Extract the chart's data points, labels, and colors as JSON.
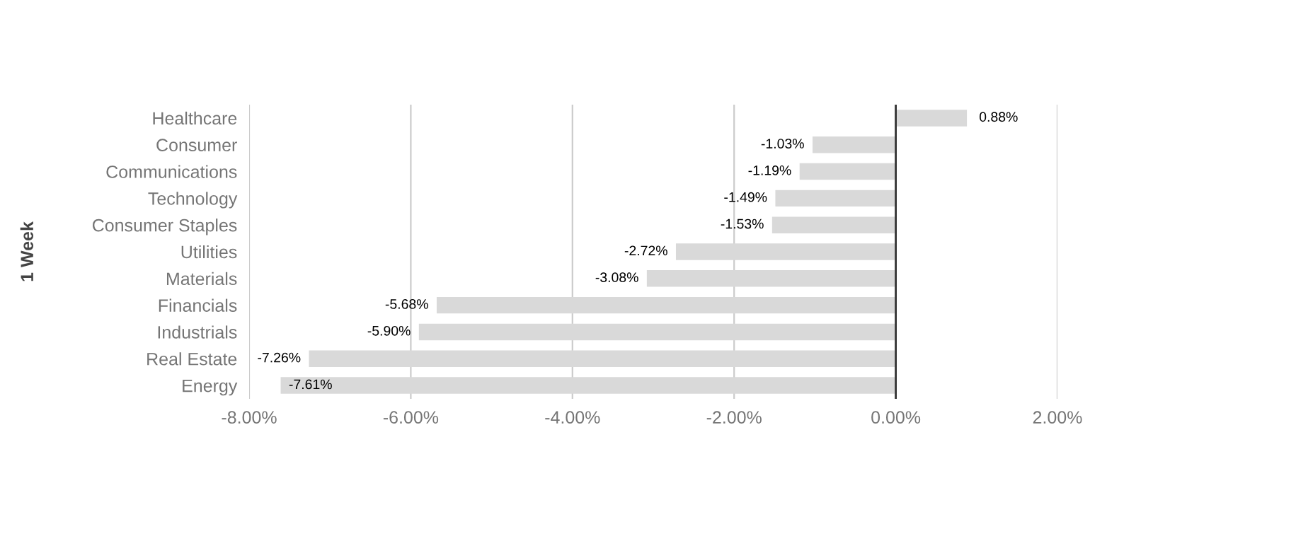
{
  "chart_data": {
    "type": "bar",
    "orientation": "horizontal",
    "ylabel": "1 Week",
    "categories": [
      "Healthcare",
      "Consumer",
      "Communications",
      "Technology",
      "Consumer Staples",
      "Utilities",
      "Materials",
      "Financials",
      "Industrials",
      "Real Estate",
      "Energy"
    ],
    "values": [
      0.88,
      -1.03,
      -1.19,
      -1.49,
      -1.53,
      -2.72,
      -3.08,
      -5.68,
      -5.9,
      -7.26,
      -7.61
    ],
    "value_labels": [
      "0.88%",
      "-1.03%",
      "-1.19%",
      "-1.49%",
      "-1.53%",
      "-2.72%",
      "-3.08%",
      "-5.68%",
      "-5.90%",
      "-7.26%",
      "-7.61%"
    ],
    "color": "#d9d9d9",
    "xlim": [
      -8,
      2
    ],
    "xticks": [
      {
        "value": -8,
        "label": "-8.00%"
      },
      {
        "value": -6,
        "label": "-6.00%"
      },
      {
        "value": -4,
        "label": "-4.00%"
      },
      {
        "value": -2,
        "label": "-2.00%"
      },
      {
        "value": 0,
        "label": "0.00%"
      },
      {
        "value": 2,
        "label": "2.00%"
      }
    ],
    "grid": "x",
    "legend": false
  }
}
